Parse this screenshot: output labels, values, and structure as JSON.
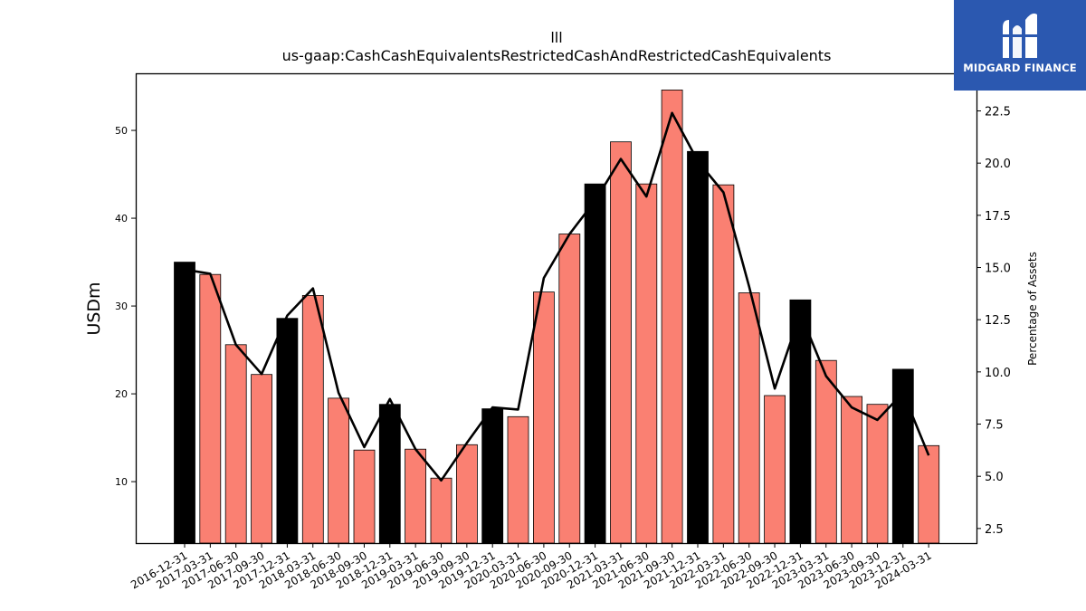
{
  "chart_data": {
    "type": "bar",
    "title": "lll",
    "subtitle": "us-gaap:CashCashEquivalentsRestrictedCashAndRestrictedCashEquivalents",
    "ylabel": "USDm",
    "y2label": "Percentage of Assets",
    "ylim": [
      3,
      56.5
    ],
    "y2lim": [
      1.8,
      24.3
    ],
    "yticks": [
      10,
      20,
      30,
      40,
      50
    ],
    "y2ticks": [
      "2.5",
      "5.0",
      "7.5",
      "10.0",
      "12.5",
      "15.0",
      "17.5",
      "20.0",
      "22.5"
    ],
    "categories": [
      "2016-12-31",
      "2017-03-31",
      "2017-06-30",
      "2017-09-30",
      "2017-12-31",
      "2018-03-31",
      "2018-06-30",
      "2018-09-30",
      "2018-12-31",
      "2019-03-31",
      "2019-06-30",
      "2019-09-30",
      "2019-12-31",
      "2020-03-31",
      "2020-06-30",
      "2020-09-30",
      "2020-12-31",
      "2021-03-31",
      "2021-06-30",
      "2021-09-30",
      "2021-12-31",
      "2022-03-31",
      "2022-06-30",
      "2022-09-30",
      "2022-12-31",
      "2023-03-31",
      "2023-06-30",
      "2023-09-30",
      "2023-12-31",
      "2024-03-31"
    ],
    "series": [
      {
        "values": [
          35.0,
          33.6,
          25.6,
          22.2,
          28.6,
          31.2,
          19.5,
          13.6,
          18.8,
          13.7,
          10.4,
          14.2,
          18.3,
          17.4,
          31.6,
          38.2,
          43.9,
          48.7,
          43.9,
          54.6,
          47.6,
          43.8,
          31.5,
          19.8,
          30.7,
          23.8,
          19.7,
          18.8,
          22.8,
          14.1
        ],
        "highlight": [
          true,
          false,
          false,
          false,
          true,
          false,
          false,
          false,
          true,
          false,
          false,
          false,
          true,
          false,
          false,
          false,
          true,
          false,
          false,
          false,
          true,
          false,
          false,
          false,
          true,
          false,
          false,
          false,
          true,
          false
        ]
      },
      {
        "axis": "right",
        "values": [
          14.9,
          14.7,
          11.3,
          9.9,
          12.7,
          14.0,
          9.0,
          6.4,
          8.7,
          6.3,
          4.8,
          6.6,
          8.3,
          8.2,
          14.5,
          16.6,
          18.2,
          20.2,
          18.4,
          22.4,
          20.1,
          18.6,
          14.1,
          9.2,
          12.8,
          9.8,
          8.3,
          7.7,
          9.0,
          6.0
        ]
      }
    ],
    "colors": {
      "bar": "#fa8072",
      "bar_highlight": "#000000",
      "line": "#000000"
    },
    "grid": false,
    "legend": "none"
  },
  "logo": {
    "text": "MIDGARD FINANCE",
    "bg": "#2b58b0"
  }
}
